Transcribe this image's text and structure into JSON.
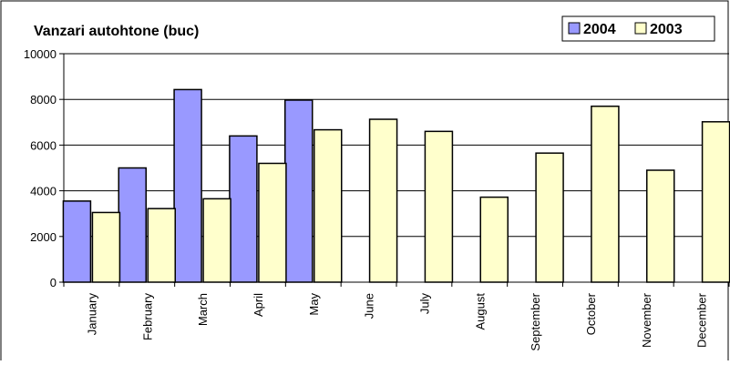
{
  "chart_data": {
    "type": "bar",
    "title": "Vanzari autohtone (buc)",
    "categories": [
      "January",
      "February",
      "March",
      "April",
      "May",
      "June",
      "July",
      "August",
      "September",
      "October",
      "November",
      "December"
    ],
    "series": [
      {
        "name": "2004",
        "color": "#9999ff",
        "values": [
          3550,
          5000,
          8430,
          6400,
          7970,
          null,
          null,
          null,
          null,
          null,
          null,
          null
        ]
      },
      {
        "name": "2003",
        "color": "#ffffcc",
        "values": [
          3050,
          3220,
          3650,
          5200,
          6670,
          7130,
          6600,
          3720,
          5650,
          7700,
          4900,
          7020
        ]
      }
    ],
    "ylim": [
      0,
      10000
    ],
    "yticks": [
      0,
      2000,
      4000,
      6000,
      8000,
      10000
    ],
    "grid": true,
    "legend_position": "top-right"
  }
}
